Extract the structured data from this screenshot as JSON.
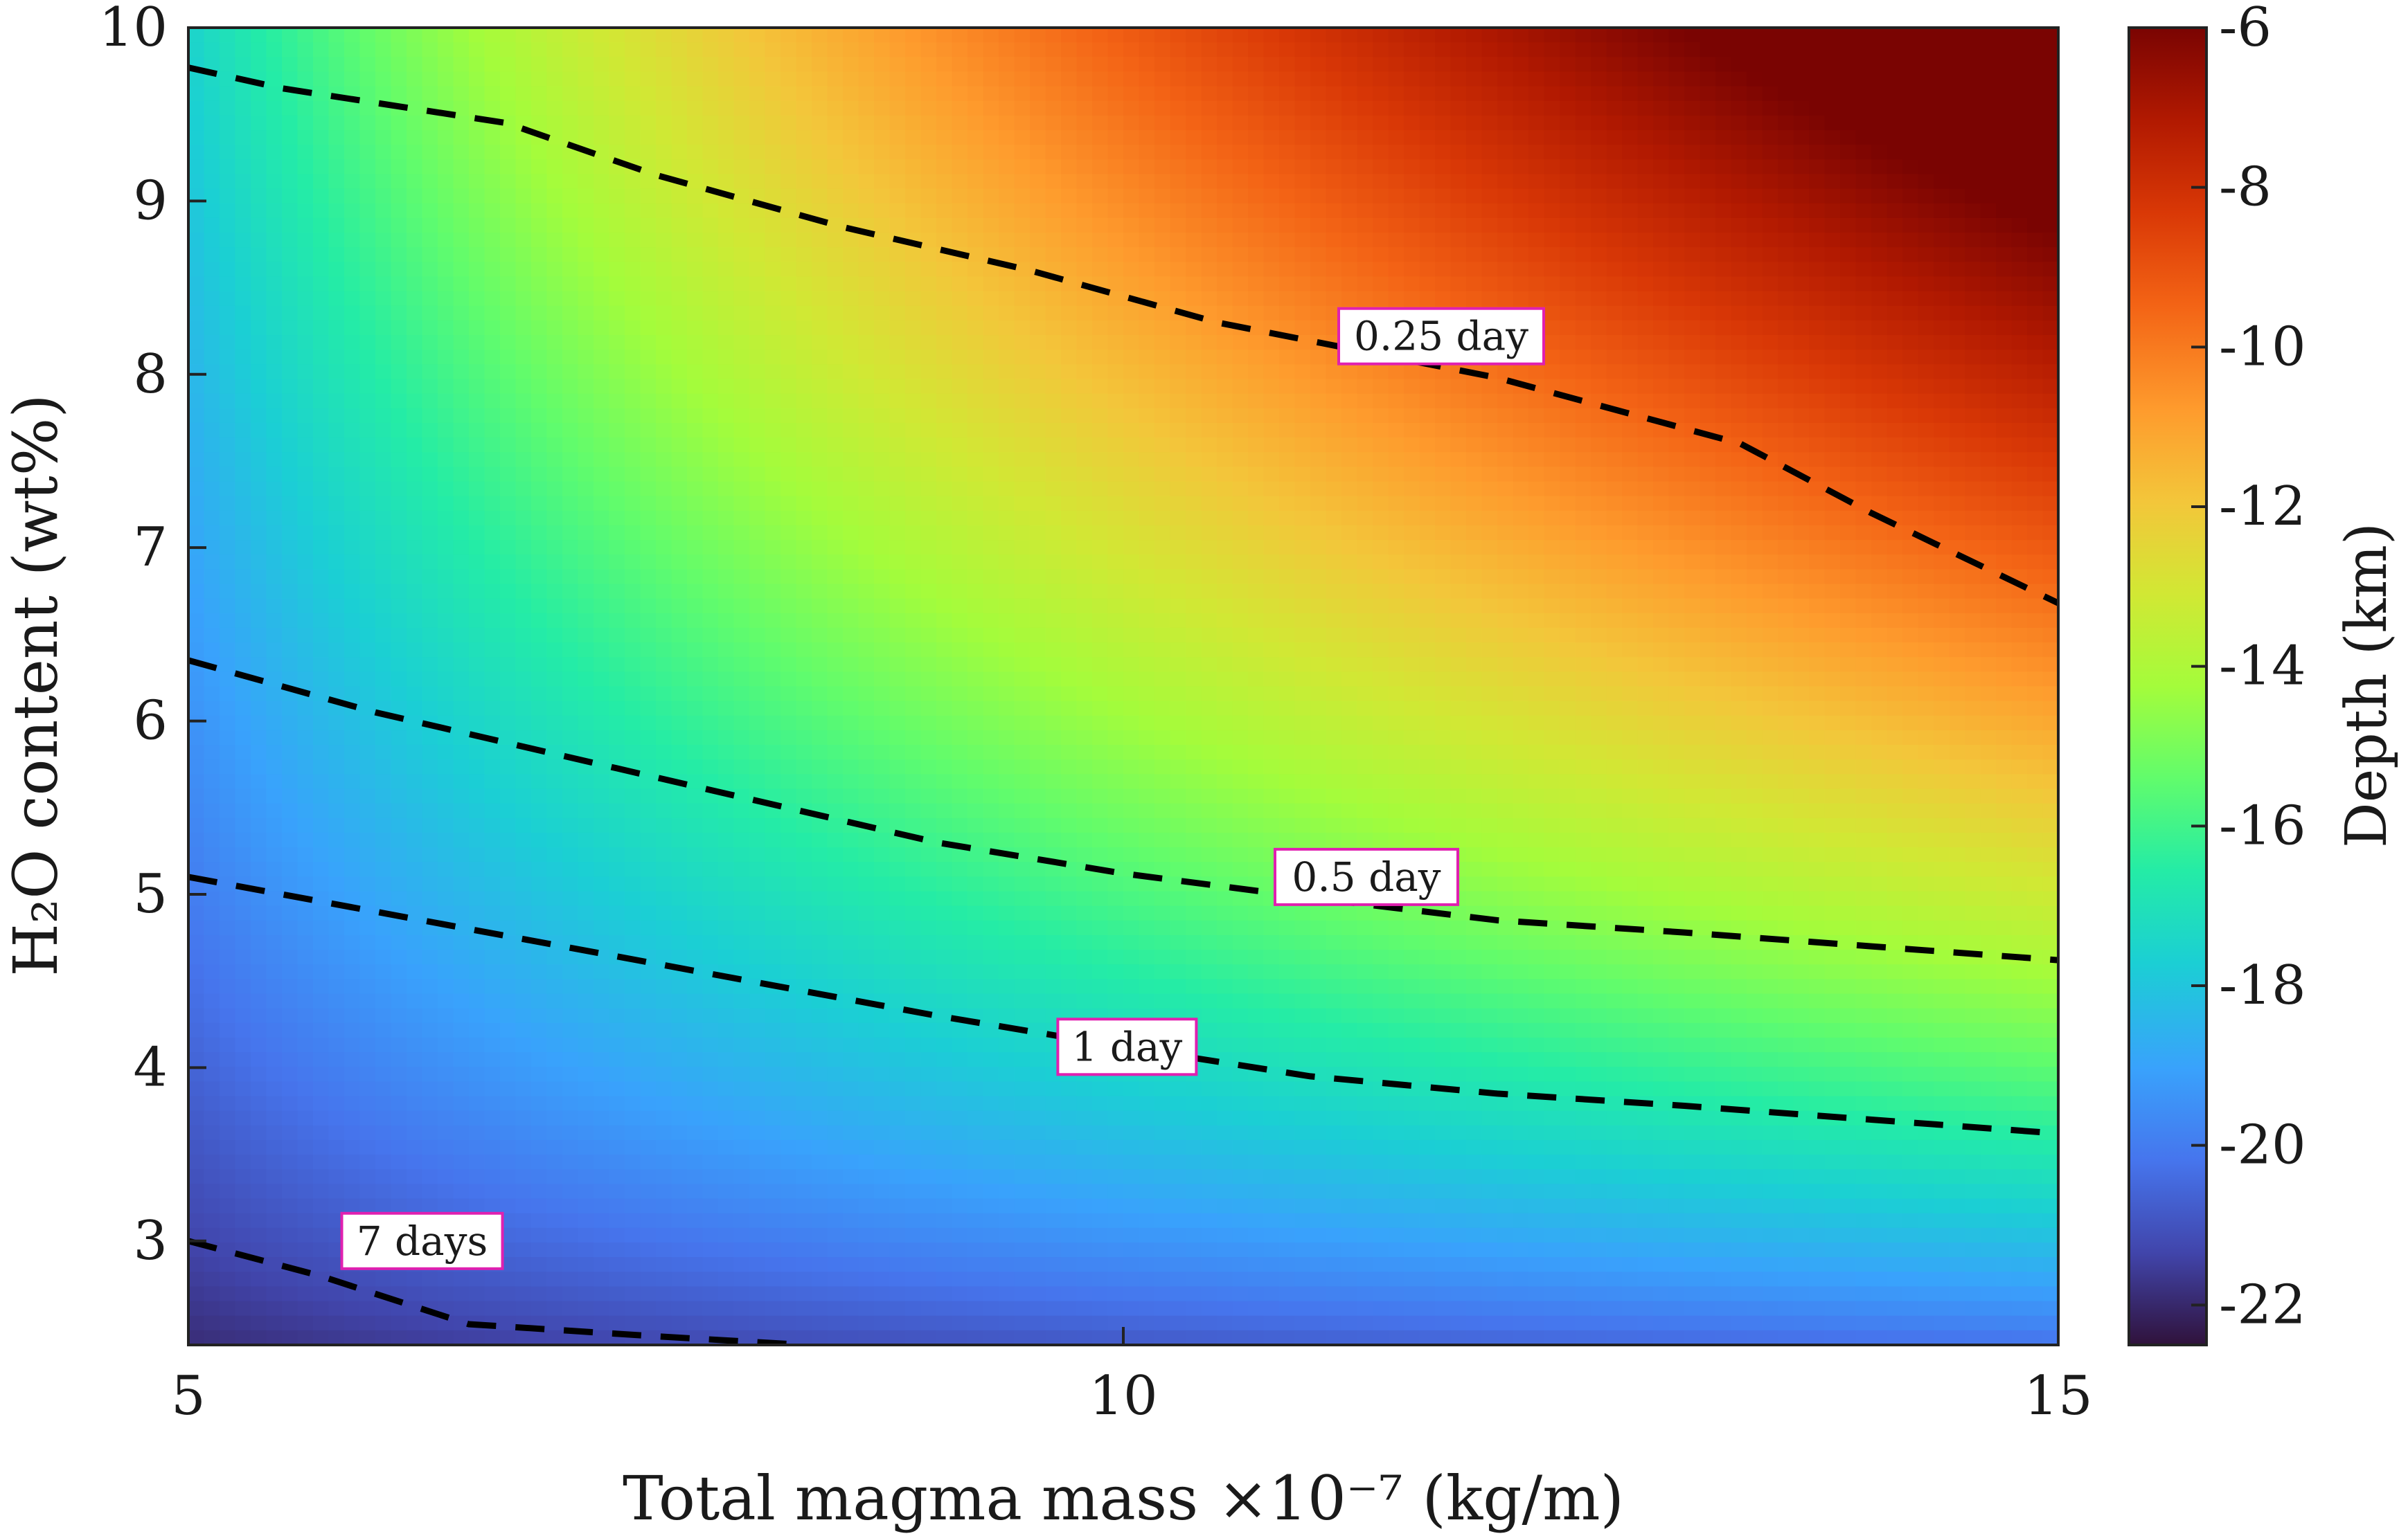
{
  "chart_data": {
    "type": "heatmap",
    "description_free": true,
    "xlabel": "Total magma mass ×10⁻⁷ (kg/m)",
    "ylabel": "H₂O content (wt%)",
    "xlim": [
      5,
      15
    ],
    "ylim": [
      2.4,
      10
    ],
    "xticks": [
      "5",
      "10",
      "15"
    ],
    "yticks": [
      "3",
      "4",
      "5",
      "6",
      "7",
      "8",
      "9",
      "10"
    ],
    "colorbar": {
      "label": "Depth (km)",
      "range": [
        -22.5,
        -6
      ],
      "ticks": [
        "-6",
        "-8",
        "-10",
        "-12",
        "-14",
        "-16",
        "-18",
        "-20",
        "-22"
      ],
      "colormap": "turbo"
    },
    "contours": [
      {
        "label": "0.25 day",
        "points": [
          [
            5,
            9.77
          ],
          [
            5.5,
            9.65
          ],
          [
            6.7,
            9.45
          ],
          [
            7.5,
            9.15
          ],
          [
            8.5,
            8.85
          ],
          [
            9.5,
            8.6
          ],
          [
            10.5,
            8.3
          ],
          [
            12,
            7.98
          ],
          [
            13.3,
            7.6
          ],
          [
            14,
            7.2
          ],
          [
            15,
            6.68
          ]
        ],
        "label_at": [
          11.7,
          8.22
        ]
      },
      {
        "label": "0.5 day",
        "points": [
          [
            5,
            6.35
          ],
          [
            6,
            6.05
          ],
          [
            7,
            5.8
          ],
          [
            8,
            5.55
          ],
          [
            9,
            5.3
          ],
          [
            10,
            5.12
          ],
          [
            11,
            4.98
          ],
          [
            12,
            4.85
          ],
          [
            13,
            4.78
          ],
          [
            14,
            4.7
          ],
          [
            15,
            4.62
          ]
        ],
        "label_at": [
          11.3,
          5.1
        ]
      },
      {
        "label": "1 day",
        "points": [
          [
            5,
            5.1
          ],
          [
            6,
            4.9
          ],
          [
            7,
            4.7
          ],
          [
            8,
            4.5
          ],
          [
            9,
            4.3
          ],
          [
            10,
            4.12
          ],
          [
            11,
            3.95
          ],
          [
            12,
            3.85
          ],
          [
            13,
            3.78
          ],
          [
            14,
            3.7
          ],
          [
            15,
            3.62
          ]
        ],
        "label_at": [
          10.02,
          4.12
        ]
      },
      {
        "label": "7 days",
        "points": [
          [
            5,
            3.0
          ],
          [
            5.7,
            2.8
          ],
          [
            6.5,
            2.52
          ],
          [
            7.5,
            2.45
          ],
          [
            8.3,
            2.4
          ]
        ],
        "label_at": [
          6.25,
          3.0
        ]
      }
    ]
  }
}
